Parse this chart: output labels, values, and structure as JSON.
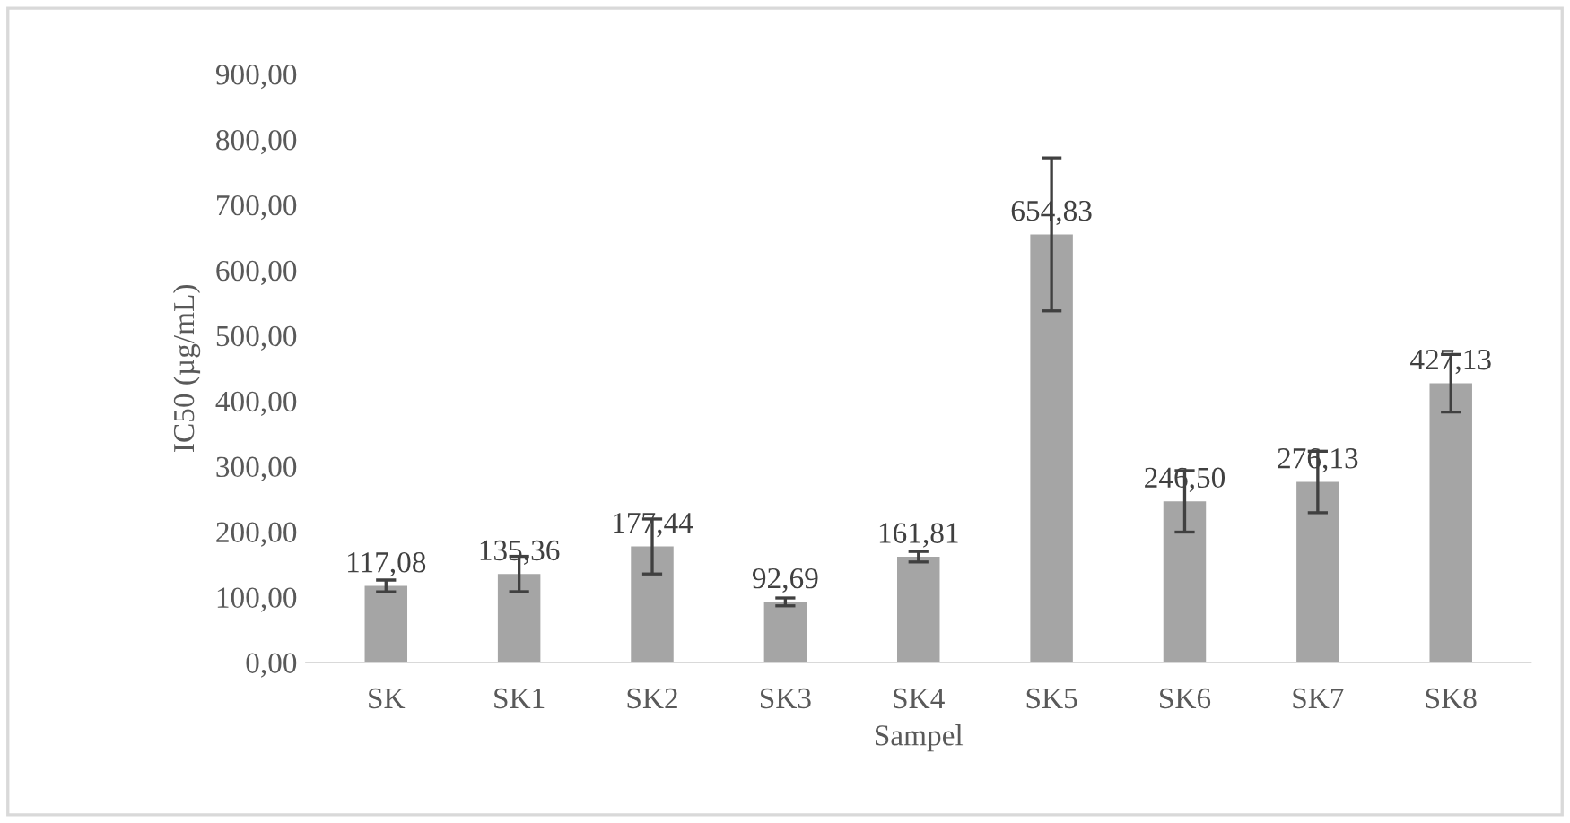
{
  "chart_data": {
    "type": "bar",
    "xlabel": "Sampel",
    "ylabel": "IC50 (µg/mL)",
    "categories": [
      "SK",
      "SK1",
      "SK2",
      "SK3",
      "SK4",
      "SK5",
      "SK6",
      "SK7",
      "SK8"
    ],
    "values": [
      117.08,
      135.36,
      177.44,
      92.69,
      161.81,
      654.83,
      246.5,
      276.13,
      427.13
    ],
    "errors": [
      9,
      27,
      42,
      6,
      8,
      117,
      47,
      47,
      44
    ],
    "value_labels": [
      "117,08",
      "135,36",
      "177,44",
      "92,69",
      "161,81",
      "654,83",
      "246,50",
      "276,13",
      "427,13"
    ],
    "color": "#a5a5a5",
    "ylim": [
      0,
      900
    ],
    "yticks": [
      {
        "value": 0,
        "label": "0,00"
      },
      {
        "value": 100,
        "label": "100,00"
      },
      {
        "value": 200,
        "label": "200,00"
      },
      {
        "value": 300,
        "label": "300,00"
      },
      {
        "value": 400,
        "label": "400,00"
      },
      {
        "value": 500,
        "label": "500,00"
      },
      {
        "value": 600,
        "label": "600,00"
      },
      {
        "value": 700,
        "label": "700,00"
      },
      {
        "value": 800,
        "label": "800,00"
      },
      {
        "value": 900,
        "label": "900,00"
      }
    ],
    "grid": false
  }
}
